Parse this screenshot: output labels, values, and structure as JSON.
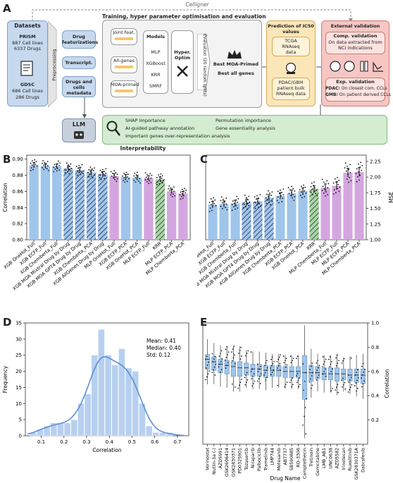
{
  "panel_labels": {
    "a": "A",
    "b": "B",
    "c": "C",
    "d": "D",
    "e": "E"
  },
  "panel_a": {
    "celligner": "Celligner",
    "training_title": "Training, hyper parameter optimisation and evaluation",
    "datasets": {
      "title": "Datasets",
      "prism": "PRISM",
      "prism_l1": "887 Cell lines",
      "prism_l2": "6337 Drugs",
      "gdsc": "GDSC",
      "gdsc_l1": "686 Cell lines",
      "gdsc_l2": "286 Drugs"
    },
    "preprocessing": "Preprocessing",
    "drug_feat": "Drug featurizations",
    "transcript": "Transcript.",
    "drugs_cells_meta": "Drugs and cells metadata",
    "joint_feat": "Joint feat.",
    "all_genes": "All-genes",
    "moa_primed": "MOA-primed",
    "models": {
      "title": "Models",
      "items": [
        "MLP",
        "XGBoost",
        "KRR",
        "SMRF"
      ]
    },
    "hyper": "Hyper. Optim",
    "evaluation": "Evaluation (20 random splits)",
    "best_moa": "Best MOA-Primed",
    "best_all": "Best all genes",
    "ic50": {
      "title": "Prediction of IC50 values",
      "tcga_l1": "TCGA",
      "tcga_l2": "RNAseq",
      "tcga_l3": "data",
      "pdac_l1": "PDAC/GBM",
      "pdac_l2": "patient bulk",
      "pdac_l3": "RNAseq data"
    },
    "ext": {
      "title": "External validation",
      "comp_title": "Comp. validation",
      "comp_l1": "On data extracted from",
      "comp_l2": "NCI indications",
      "exp_title": "Exp. validation",
      "pdac_key": "PDAC:",
      "pdac_text": "On closest com. CCLs",
      "gmb_key": "GMB:",
      "gmb_text": "On patient derived CCLs"
    },
    "llm": "LLM",
    "interp": {
      "i1": "SHAP Importance",
      "i2": "AI-guided pathway annotation",
      "i3": "Important genes over-representation analysis",
      "i4": "Permutation importance",
      "i5": "Gene essentiality analysis"
    },
    "interpretability": "Interpretability"
  },
  "chart_data": [
    {
      "id": "B",
      "type": "bar",
      "ylabel": "Correlation",
      "ylim": [
        0.8,
        0.905
      ],
      "yticks": [
        0.8,
        0.82,
        0.84,
        0.86,
        0.88,
        0.9
      ],
      "categories": [
        "XGB OneHot_Full",
        "XGB ECFP_Full",
        "XGB Chemberta_Full",
        "XGB MOA Mixtral Drug by Drug",
        "XGB MOA GPT4 Drug by Drug",
        "XGB Chemberta_PCA",
        "XGB AllGenes Drug by Drug",
        "MLP OneHot_Full",
        "XGB ECFP_PCA",
        "XGB OneHot_PCA",
        "MLP ECFP_Full",
        "KRR",
        "MLP ECFP_PCA",
        "MLP Chemberta_PCA"
      ],
      "values": [
        0.8925,
        0.8915,
        0.891,
        0.8885,
        0.8865,
        0.8835,
        0.8815,
        0.879,
        0.878,
        0.877,
        0.8765,
        0.875,
        0.86,
        0.857
      ],
      "errors": [
        0.003,
        0.003,
        0.003,
        0.003,
        0.003,
        0.003,
        0.003,
        0.003,
        0.003,
        0.003,
        0.003,
        0.003,
        0.003,
        0.003
      ],
      "colors": [
        "#9fc5eb",
        "#9fc5eb",
        "#9fc5eb",
        "#9fc5eb",
        "#9fc5eb",
        "#9fc5eb",
        "#9fc5eb",
        "#d4a6e0",
        "#9fc5eb",
        "#9fc5eb",
        "#d4a6e0",
        "#a9d6a3",
        "#d4a6e0",
        "#d4a6e0"
      ],
      "hatched": [
        false,
        false,
        false,
        true,
        true,
        true,
        true,
        false,
        false,
        false,
        false,
        true,
        false,
        false
      ]
    },
    {
      "id": "C",
      "type": "bar",
      "ylabel": "MSE",
      "ylim": [
        1.0,
        2.35
      ],
      "yticks": [
        1.0,
        1.25,
        1.5,
        1.75,
        2.0,
        2.25
      ],
      "categories": [
        "XGB OneHot_Full",
        "XGB ECFP_Full",
        "XGB Chemberta_Full",
        "XGB MOA Mixtral Drug by Drug",
        "XGB MOA GPT4 Drug by Drug",
        "XGB AllGenes Drug by Drug",
        "XGB Chemberta_PCA",
        "XGB ECFP_PCA",
        "XGB OneHot_PCA",
        "KRR",
        "MLP Chemberta_Full",
        "MLP ECFP_Full",
        "MLP ECFP_PCA",
        "MLP Chemberta_PCA"
      ],
      "values": [
        1.56,
        1.57,
        1.58,
        1.6,
        1.61,
        1.67,
        1.7,
        1.74,
        1.78,
        1.81,
        1.83,
        1.86,
        2.07,
        2.08
      ],
      "errors": [
        0.05,
        0.05,
        0.05,
        0.05,
        0.05,
        0.05,
        0.05,
        0.05,
        0.05,
        0.05,
        0.06,
        0.06,
        0.07,
        0.07
      ],
      "colors": [
        "#9fc5eb",
        "#9fc5eb",
        "#9fc5eb",
        "#9fc5eb",
        "#9fc5eb",
        "#9fc5eb",
        "#9fc5eb",
        "#9fc5eb",
        "#9fc5eb",
        "#a9d6a3",
        "#d4a6e0",
        "#d4a6e0",
        "#d4a6e0",
        "#d4a6e0"
      ],
      "hatched": [
        false,
        false,
        false,
        true,
        true,
        true,
        false,
        false,
        false,
        true,
        false,
        false,
        false,
        false
      ]
    },
    {
      "id": "D",
      "type": "histogram",
      "xlabel": "Correlation",
      "ylabel": "Frequency",
      "ylim": [
        0,
        35
      ],
      "xticks": [
        0.1,
        0.2,
        0.3,
        0.4,
        0.5,
        0.6,
        0.7
      ],
      "yticks": [
        0,
        5,
        10,
        15,
        20,
        25,
        30,
        35
      ],
      "bin_start": 0.05,
      "bin_width": 0.03,
      "counts": [
        1,
        2,
        3,
        4,
        4,
        4,
        5,
        10,
        13,
        25,
        33,
        25,
        22,
        27,
        21,
        20,
        10,
        3,
        1,
        1,
        1
      ],
      "stats": {
        "mean": "Mean: 0.41",
        "median": "Median: 0.40",
        "std": "Std: 0.12"
      }
    },
    {
      "id": "E",
      "type": "box",
      "xlabel": "Drug Name",
      "ylabel": "Correlation",
      "ylim": [
        0.0,
        1.0
      ],
      "yticks": [
        0.2,
        0.4,
        0.6,
        0.8,
        1.0
      ],
      "categories": [
        "Vorinostat",
        "Nutlin-3a (-)",
        "AZD5991",
        "GSK2606414",
        "GSK2830371",
        "PD0325901",
        "Tozasertib",
        "Niraparib",
        "Palbociclib",
        "Tramelinib",
        "LMP744",
        "Motesanib",
        "AB7737",
        "SB590885",
        "RO-3306",
        "Camptothecin",
        "Tretinoin",
        "Gemcitabine",
        "LMB_AB1",
        "UNC0638",
        "AZD5582",
        "Irinotecan",
        "Ruxolitinib",
        "GSK2830371A",
        "Dabrafenib"
      ],
      "medians": [
        0.7,
        0.68,
        0.66,
        0.65,
        0.64,
        0.63,
        0.63,
        0.62,
        0.62,
        0.61,
        0.61,
        0.61,
        0.6,
        0.6,
        0.6,
        0.59,
        0.59,
        0.59,
        0.58,
        0.58,
        0.58,
        0.58,
        0.57,
        0.57,
        0.57
      ],
      "q1": [
        0.62,
        0.61,
        0.59,
        0.58,
        0.56,
        0.56,
        0.57,
        0.56,
        0.56,
        0.55,
        0.56,
        0.56,
        0.55,
        0.55,
        0.55,
        0.37,
        0.52,
        0.54,
        0.53,
        0.53,
        0.52,
        0.53,
        0.52,
        0.51,
        0.5
      ],
      "q3": [
        0.74,
        0.72,
        0.7,
        0.69,
        0.68,
        0.68,
        0.67,
        0.66,
        0.66,
        0.65,
        0.65,
        0.65,
        0.64,
        0.64,
        0.64,
        0.73,
        0.65,
        0.64,
        0.63,
        0.63,
        0.63,
        0.62,
        0.62,
        0.62,
        0.62
      ]
    }
  ]
}
